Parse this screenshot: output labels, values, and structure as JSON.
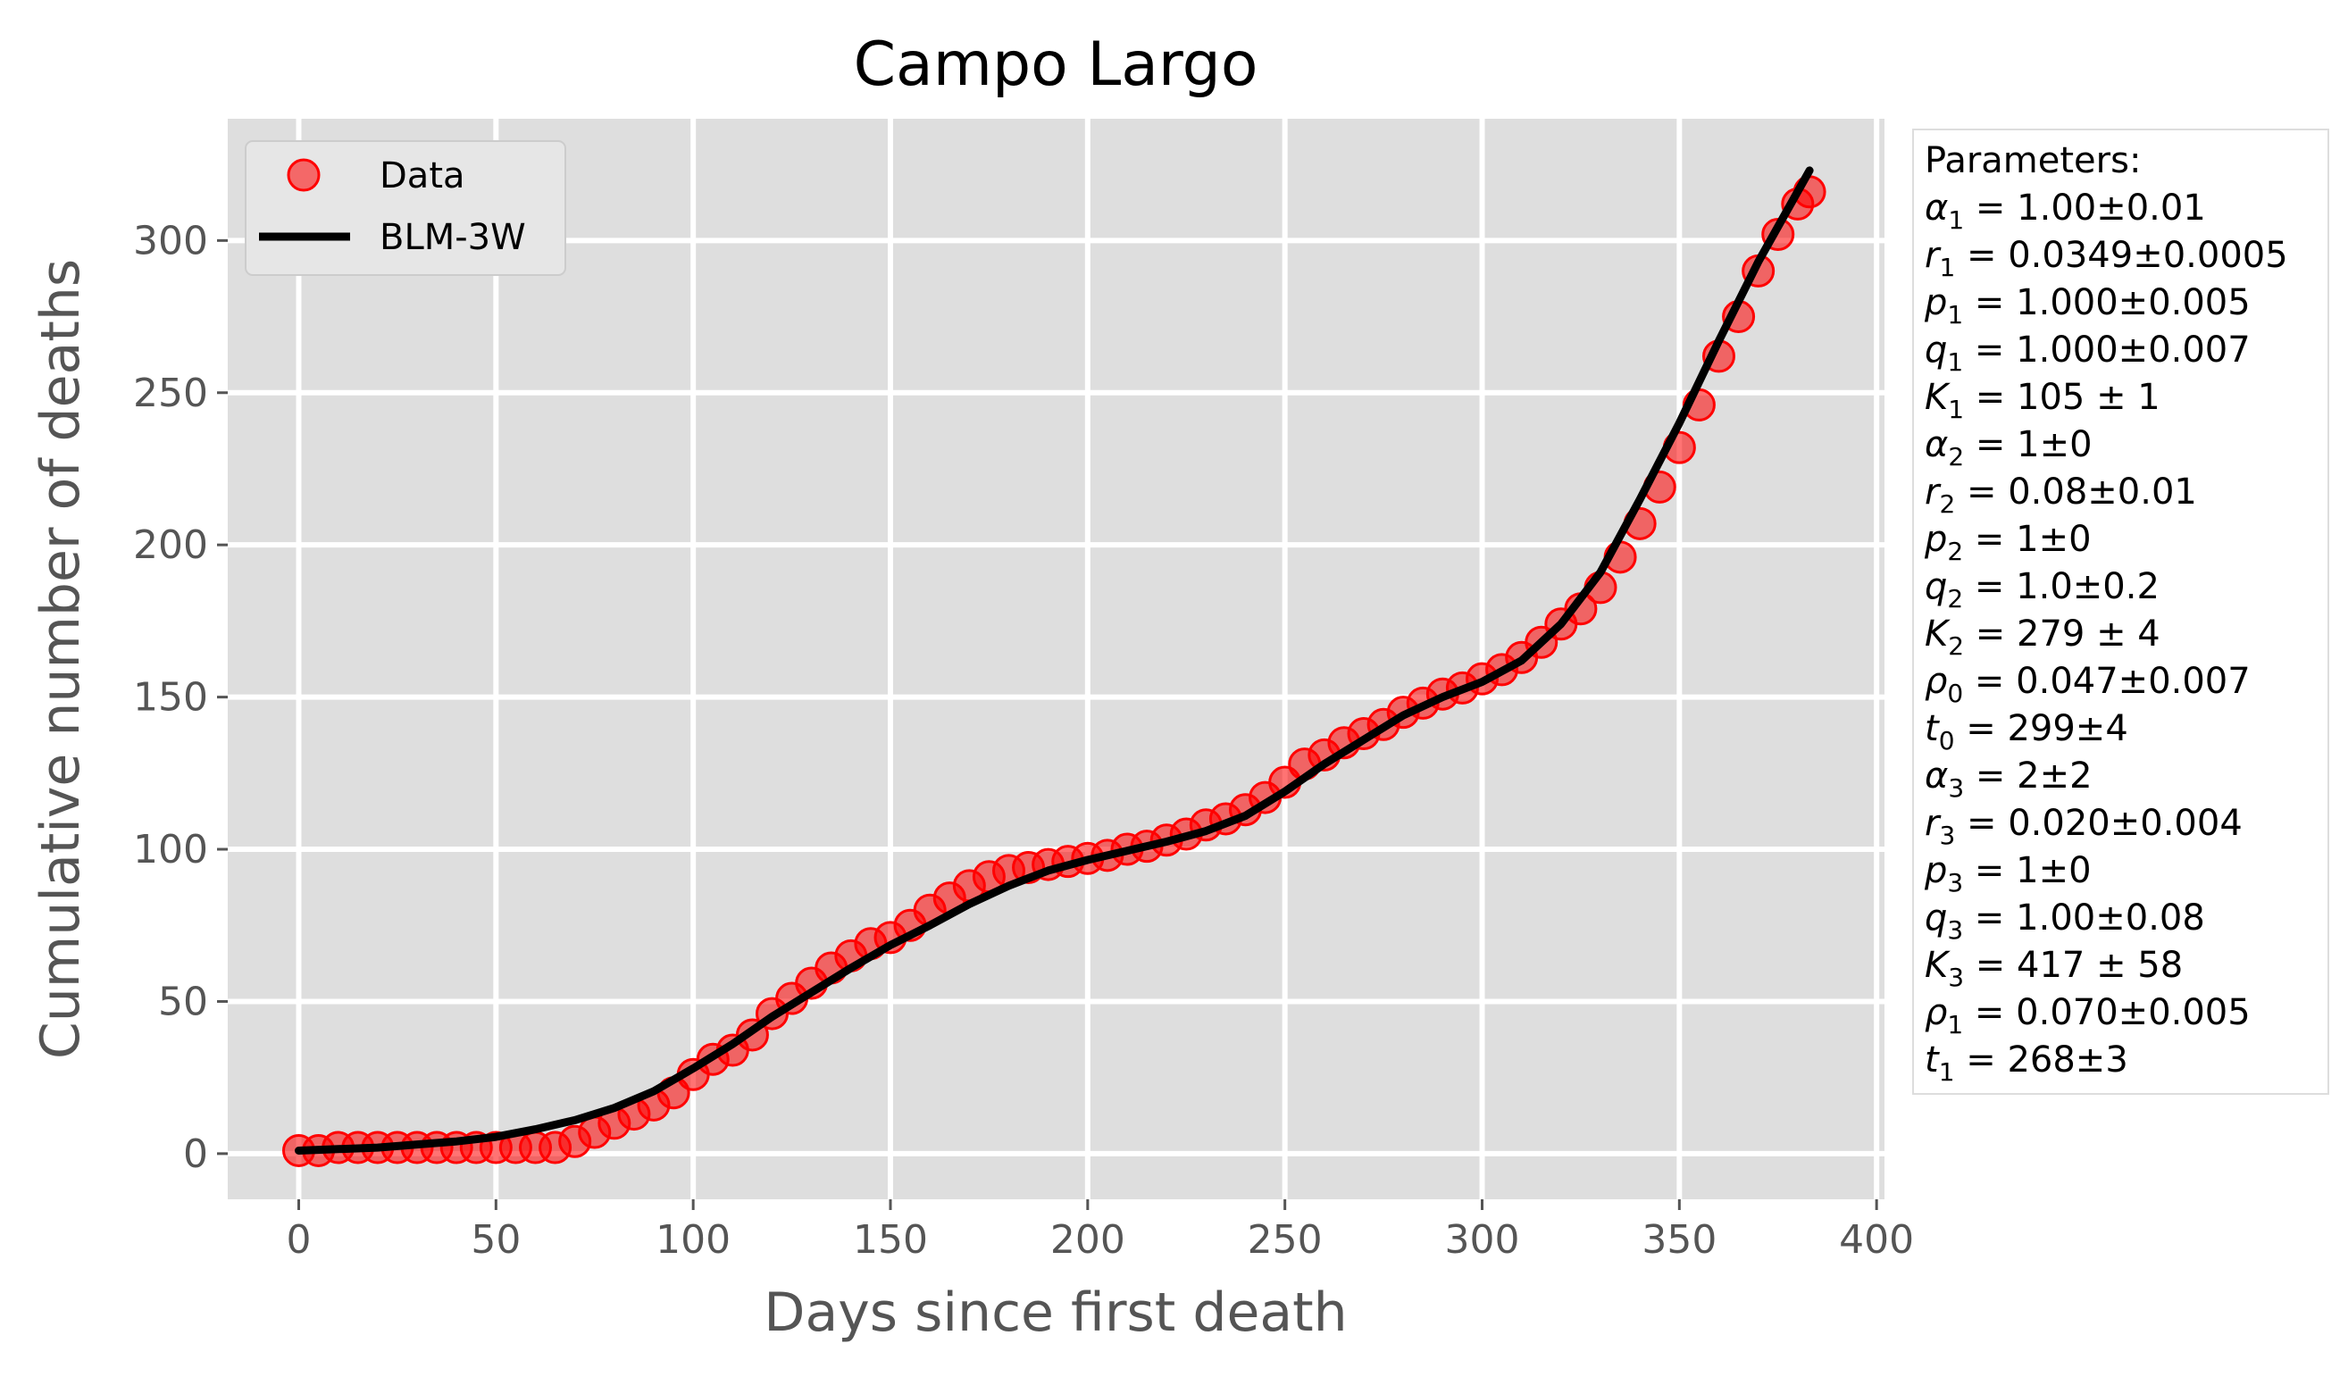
{
  "chart_data": {
    "type": "scatter",
    "title": "Campo Largo",
    "xlabel": "Days since first death",
    "ylabel": "Cumulative number of deaths",
    "xlim": [
      -18,
      402
    ],
    "ylim": [
      -15,
      340
    ],
    "xticks": [
      0,
      50,
      100,
      150,
      200,
      250,
      300,
      350,
      400
    ],
    "yticks": [
      0,
      50,
      100,
      150,
      200,
      250,
      300
    ],
    "grid": true,
    "legend_position": "top-left",
    "colors": {
      "data": "#ff0000",
      "fit": "#000000",
      "plot_bg": "#dedede",
      "grid": "#ffffff"
    },
    "series": [
      {
        "name": "Data",
        "kind": "scatter",
        "x": [
          0,
          5,
          10,
          15,
          20,
          25,
          30,
          35,
          40,
          45,
          50,
          55,
          60,
          65,
          70,
          75,
          80,
          85,
          90,
          95,
          100,
          105,
          110,
          115,
          120,
          125,
          130,
          135,
          140,
          145,
          150,
          155,
          160,
          165,
          170,
          175,
          180,
          185,
          190,
          195,
          200,
          205,
          210,
          215,
          220,
          225,
          230,
          235,
          240,
          245,
          250,
          255,
          260,
          265,
          270,
          275,
          280,
          285,
          290,
          295,
          300,
          305,
          310,
          315,
          320,
          325,
          330,
          335,
          340,
          345,
          350,
          355,
          360,
          365,
          370,
          375,
          380,
          383
        ],
        "y": [
          1,
          1,
          2,
          2,
          2,
          2,
          2,
          2,
          2,
          2,
          2,
          2,
          2,
          2,
          4,
          7,
          10,
          13,
          16,
          20,
          26,
          31,
          34,
          39,
          46,
          51,
          56,
          61,
          65,
          69,
          71,
          75,
          80,
          84,
          88,
          91,
          93,
          94,
          95,
          96,
          97,
          98,
          100,
          101,
          103,
          105,
          108,
          110,
          113,
          117,
          122,
          128,
          131,
          135,
          138,
          141,
          145,
          148,
          151,
          153,
          156,
          159,
          163,
          168,
          174,
          179,
          186,
          196,
          207,
          219,
          232,
          246,
          262,
          275,
          290,
          302,
          312,
          316
        ]
      },
      {
        "name": "BLM-3W",
        "kind": "line",
        "x": [
          0,
          10,
          20,
          30,
          40,
          50,
          60,
          70,
          80,
          90,
          100,
          110,
          120,
          130,
          140,
          150,
          160,
          170,
          180,
          190,
          200,
          210,
          220,
          230,
          240,
          250,
          260,
          270,
          280,
          290,
          300,
          310,
          320,
          330,
          340,
          350,
          360,
          370,
          383
        ],
        "y": [
          1,
          1.5,
          2,
          3,
          4,
          5.5,
          8,
          11,
          15,
          20.5,
          28,
          36,
          45,
          53,
          61,
          68.5,
          75,
          82,
          88,
          93,
          96.5,
          99.5,
          102.5,
          106,
          111,
          119,
          128,
          136,
          144,
          150,
          155,
          162,
          174,
          191,
          215,
          240,
          267,
          293,
          323
        ]
      }
    ]
  },
  "parameters_box": {
    "lines": [
      {
        "sym": "α",
        "sub": "1",
        "rest": " = 1.00±0.01"
      },
      {
        "sym": "r",
        "sub": "1",
        "rest": " = 0.0349±0.0005"
      },
      {
        "sym": "p",
        "sub": "1",
        "rest": " = 1.000±0.005"
      },
      {
        "sym": "q",
        "sub": "1",
        "rest": " = 1.000±0.007"
      },
      {
        "sym": "K",
        "sub": "1",
        "rest": " = 105 ± 1"
      },
      {
        "sym": "α",
        "sub": "2",
        "rest": " = 1±0"
      },
      {
        "sym": "r",
        "sub": "2",
        "rest": " = 0.08±0.01"
      },
      {
        "sym": "p",
        "sub": "2",
        "rest": " = 1±0"
      },
      {
        "sym": "q",
        "sub": "2",
        "rest": " = 1.0±0.2"
      },
      {
        "sym": "K",
        "sub": "2",
        "rest": " = 279 ± 4"
      },
      {
        "sym": "ρ",
        "sub": "0",
        "rest": " = 0.047±0.007"
      },
      {
        "sym": "t",
        "sub": "0",
        "rest": " = 299±4"
      },
      {
        "sym": "α",
        "sub": "3",
        "rest": " = 2±2"
      },
      {
        "sym": "r",
        "sub": "3",
        "rest": " = 0.020±0.004"
      },
      {
        "sym": "p",
        "sub": "3",
        "rest": " = 1±0"
      },
      {
        "sym": "q",
        "sub": "3",
        "rest": " = 1.00±0.08"
      },
      {
        "sym": "K",
        "sub": "3",
        "rest": " = 417 ± 58"
      },
      {
        "sym": "ρ",
        "sub": "1",
        "rest": " = 0.070±0.005"
      },
      {
        "sym": "t",
        "sub": "1",
        "rest": " = 268±3"
      }
    ],
    "heading": "Parameters:"
  }
}
